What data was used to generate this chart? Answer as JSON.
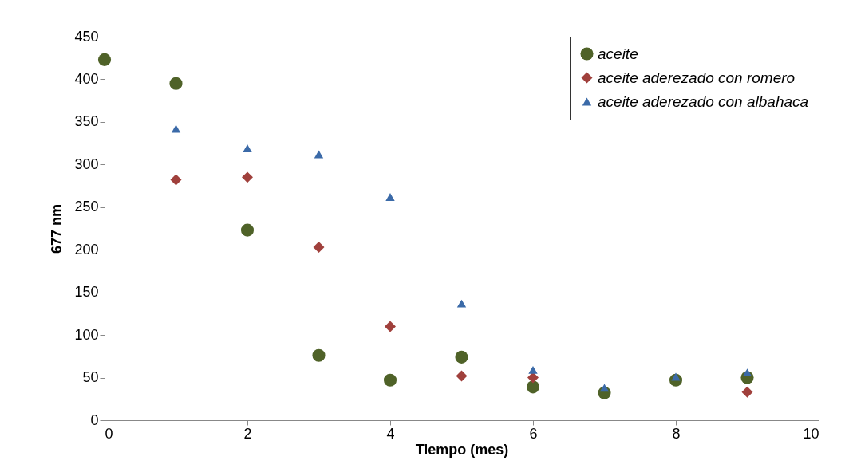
{
  "chart_data": {
    "type": "scatter",
    "xlabel": "Tiempo (mes)",
    "ylabel": "677 nm",
    "xlim": [
      0,
      10
    ],
    "xticks": [
      0,
      2,
      4,
      6,
      8,
      10
    ],
    "ylim": [
      0,
      450
    ],
    "yticks": [
      0,
      50,
      100,
      150,
      200,
      250,
      300,
      350,
      400,
      450
    ],
    "grid": false,
    "legend": "top right",
    "x": [
      0,
      1,
      2,
      3,
      4,
      5,
      6,
      7,
      8,
      9
    ],
    "series": [
      {
        "name": "aceite",
        "color": "#4f6228",
        "marker": "circle",
        "values": [
          423,
          395,
          223,
          76,
          47,
          74,
          39,
          32,
          47,
          50
        ]
      },
      {
        "name": "aceite aderezado con romero",
        "color": "#a0403c",
        "marker": "diamond",
        "values": [
          null,
          282,
          285,
          203,
          110,
          52,
          50,
          null,
          null,
          33
        ]
      },
      {
        "name": "aceite aderezado con albahaca",
        "color": "#3b6aa8",
        "marker": "triangle",
        "values": [
          null,
          342,
          319,
          312,
          262,
          137,
          59,
          38,
          51,
          56
        ]
      }
    ]
  }
}
